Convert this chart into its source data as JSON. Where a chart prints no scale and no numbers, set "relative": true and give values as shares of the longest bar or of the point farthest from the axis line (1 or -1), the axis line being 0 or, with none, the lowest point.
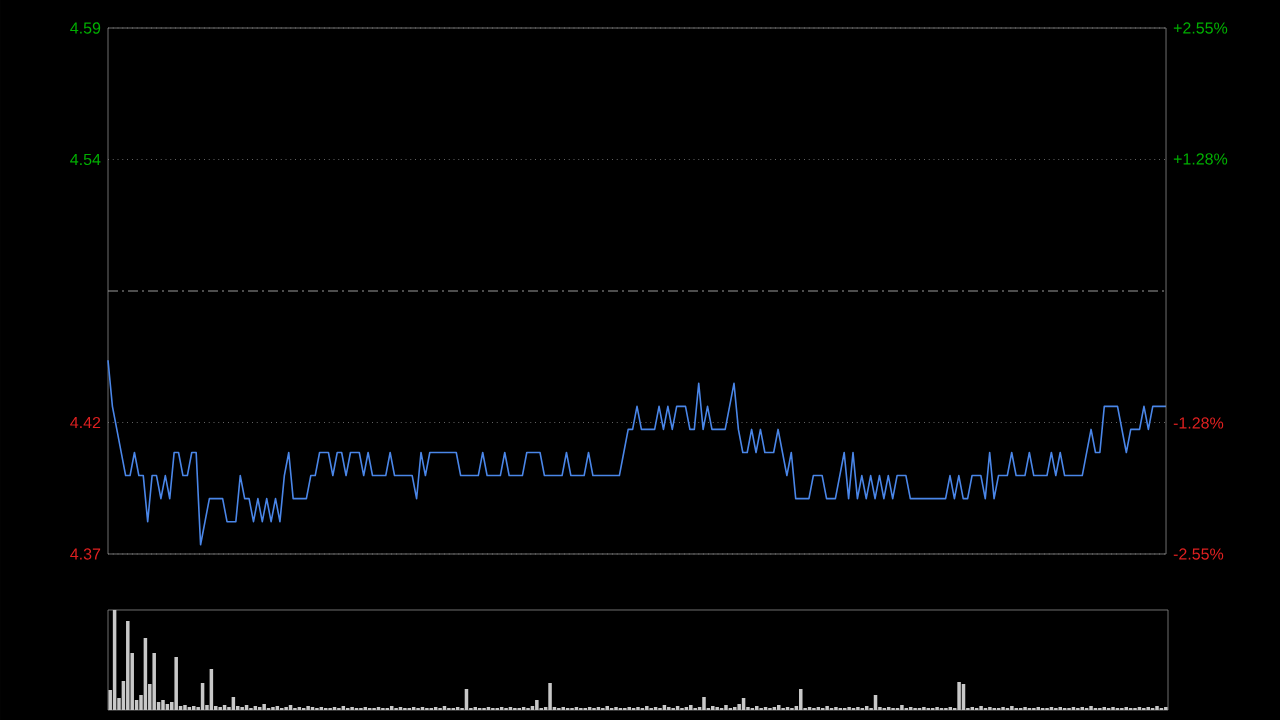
{
  "chart_data": [
    {
      "type": "line",
      "grid": "y",
      "categories": [
        null,
        null,
        null,
        null,
        null,
        null,
        null,
        null,
        null,
        null,
        null,
        null,
        null,
        null,
        null,
        null,
        null,
        null,
        null,
        null,
        null,
        null,
        null,
        null,
        null,
        null,
        null,
        null,
        null,
        null,
        null,
        null,
        null,
        null,
        null,
        null,
        null,
        null,
        null,
        null,
        null,
        null,
        null,
        null,
        null,
        null,
        null,
        null,
        null,
        null,
        null,
        null,
        null,
        null,
        null,
        null,
        null,
        null,
        null,
        null,
        null,
        null,
        null,
        null,
        null,
        null,
        null,
        null,
        null,
        null,
        null,
        null,
        null,
        null,
        null,
        null,
        null,
        null,
        null,
        null,
        null,
        null,
        null,
        null,
        null,
        null,
        null,
        null,
        null,
        null,
        null,
        null,
        null,
        null,
        null,
        null,
        null,
        null,
        null,
        null,
        null,
        null,
        null,
        null,
        null,
        null,
        null,
        null,
        null,
        null,
        null,
        null,
        null,
        null,
        null,
        null,
        null,
        null,
        null,
        null,
        null,
        null,
        null,
        null,
        null,
        null,
        null,
        null,
        null,
        null,
        null,
        null,
        null,
        null,
        null,
        null,
        null,
        null,
        null,
        null,
        null,
        null,
        null,
        null,
        null,
        null,
        null,
        null,
        null,
        null,
        null,
        null,
        null,
        null,
        null,
        null,
        null,
        null,
        null,
        null,
        null,
        null,
        null,
        null,
        null,
        null,
        null,
        null,
        null,
        null,
        null,
        null,
        null,
        null,
        null,
        null,
        null,
        null,
        null,
        null,
        null,
        null,
        null,
        null,
        null,
        null,
        null,
        null,
        null,
        null,
        null,
        null,
        null,
        null,
        null,
        null,
        null,
        null,
        null,
        null,
        null,
        null,
        null,
        null,
        null,
        null,
        null,
        null,
        null,
        null,
        null,
        null,
        null,
        null,
        null,
        null,
        null,
        null,
        null,
        null,
        null,
        null,
        null,
        null,
        null,
        null,
        null,
        null,
        null,
        null,
        null,
        null,
        null,
        null,
        null,
        null,
        null,
        null,
        null,
        null,
        null
      ],
      "ylim": [
        4.366,
        4.594
      ],
      "yticks": [
        {
          "value": 4.366,
          "label": "4.37"
        },
        {
          "value": 4.423,
          "label": "4.42"
        },
        {
          "value": 4.537,
          "label": "4.54"
        },
        {
          "value": 4.594,
          "label": "4.59"
        }
      ],
      "y2lim": [
        -2.55,
        2.55
      ],
      "y2ticks": [
        {
          "value": -2.55,
          "label": "-2.55%"
        },
        {
          "value": -1.28,
          "label": "-1.28%"
        },
        {
          "value": 1.28,
          "label": "+1.28%"
        },
        {
          "value": 2.55,
          "label": "+2.55%"
        }
      ],
      "ref_lines": [
        {
          "axis": "y",
          "value": 4.48,
          "line_style": "dashed",
          "color": "#9a9a9a"
        }
      ],
      "series": [
        {
          "color": "#4a86e8",
          "values": [
            4.45,
            4.43,
            4.42,
            4.41,
            4.4,
            4.4,
            4.41,
            4.4,
            4.4,
            4.38,
            4.4,
            4.4,
            4.39,
            4.4,
            4.39,
            4.41,
            4.41,
            4.4,
            4.4,
            4.41,
            4.41,
            4.37,
            4.38,
            4.39,
            4.39,
            4.39,
            4.39,
            4.38,
            4.38,
            4.38,
            4.4,
            4.39,
            4.39,
            4.38,
            4.39,
            4.38,
            4.39,
            4.38,
            4.39,
            4.38,
            4.4,
            4.41,
            4.39,
            4.39,
            4.39,
            4.39,
            4.4,
            4.4,
            4.41,
            4.41,
            4.41,
            4.4,
            4.41,
            4.41,
            4.4,
            4.41,
            4.41,
            4.41,
            4.4,
            4.41,
            4.4,
            4.4,
            4.4,
            4.4,
            4.41,
            4.4,
            4.4,
            4.4,
            4.4,
            4.4,
            4.39,
            4.41,
            4.4,
            4.41,
            4.41,
            4.41,
            4.41,
            4.41,
            4.41,
            4.41,
            4.4,
            4.4,
            4.4,
            4.4,
            4.4,
            4.41,
            4.4,
            4.4,
            4.4,
            4.4,
            4.41,
            4.4,
            4.4,
            4.4,
            4.4,
            4.41,
            4.41,
            4.41,
            4.41,
            4.4,
            4.4,
            4.4,
            4.4,
            4.4,
            4.41,
            4.4,
            4.4,
            4.4,
            4.4,
            4.41,
            4.4,
            4.4,
            4.4,
            4.4,
            4.4,
            4.4,
            4.4,
            4.41,
            4.42,
            4.42,
            4.43,
            4.42,
            4.42,
            4.42,
            4.42,
            4.43,
            4.42,
            4.43,
            4.42,
            4.43,
            4.43,
            4.43,
            4.42,
            4.42,
            4.44,
            4.42,
            4.43,
            4.42,
            4.42,
            4.42,
            4.42,
            4.43,
            4.44,
            4.42,
            4.41,
            4.41,
            4.42,
            4.41,
            4.42,
            4.41,
            4.41,
            4.41,
            4.42,
            4.41,
            4.4,
            4.41,
            4.39,
            4.39,
            4.39,
            4.39,
            4.4,
            4.4,
            4.4,
            4.39,
            4.39,
            4.39,
            4.4,
            4.41,
            4.39,
            4.41,
            4.39,
            4.4,
            4.39,
            4.4,
            4.39,
            4.4,
            4.39,
            4.4,
            4.39,
            4.4,
            4.4,
            4.4,
            4.39,
            4.39,
            4.39,
            4.39,
            4.39,
            4.39,
            4.39,
            4.39,
            4.39,
            4.4,
            4.39,
            4.4,
            4.39,
            4.39,
            4.4,
            4.4,
            4.4,
            4.39,
            4.41,
            4.39,
            4.4,
            4.4,
            4.4,
            4.41,
            4.4,
            4.4,
            4.4,
            4.41,
            4.4,
            4.4,
            4.4,
            4.4,
            4.41,
            4.4,
            4.41,
            4.4,
            4.4,
            4.4,
            4.4,
            4.4,
            4.41,
            4.42,
            4.41,
            4.41,
            4.43,
            4.43,
            4.43,
            4.43,
            4.42,
            4.41,
            4.42,
            4.42,
            4.42,
            4.43,
            4.42,
            4.43,
            4.43,
            4.43,
            4.43
          ]
        }
      ]
    },
    {
      "type": "bar",
      "relative": true,
      "color": "#c8c8c8",
      "categories": [
        null,
        null,
        null,
        null,
        null,
        null,
        null,
        null,
        null,
        null,
        null,
        null,
        null,
        null,
        null,
        null,
        null,
        null,
        null,
        null,
        null,
        null,
        null,
        null,
        null,
        null,
        null,
        null,
        null,
        null,
        null,
        null,
        null,
        null,
        null,
        null,
        null,
        null,
        null,
        null,
        null,
        null,
        null,
        null,
        null,
        null,
        null,
        null,
        null,
        null,
        null,
        null,
        null,
        null,
        null,
        null,
        null,
        null,
        null,
        null,
        null,
        null,
        null,
        null,
        null,
        null,
        null,
        null,
        null,
        null,
        null,
        null,
        null,
        null,
        null,
        null,
        null,
        null,
        null,
        null,
        null,
        null,
        null,
        null,
        null,
        null,
        null,
        null,
        null,
        null,
        null,
        null,
        null,
        null,
        null,
        null,
        null,
        null,
        null,
        null,
        null,
        null,
        null,
        null,
        null,
        null,
        null,
        null,
        null,
        null,
        null,
        null,
        null,
        null,
        null,
        null,
        null,
        null,
        null,
        null,
        null,
        null,
        null,
        null,
        null,
        null,
        null,
        null,
        null,
        null,
        null,
        null,
        null,
        null,
        null,
        null,
        null,
        null,
        null,
        null,
        null,
        null,
        null,
        null,
        null,
        null,
        null,
        null,
        null,
        null,
        null,
        null,
        null,
        null,
        null,
        null,
        null,
        null,
        null,
        null,
        null,
        null,
        null,
        null,
        null,
        null,
        null,
        null,
        null,
        null,
        null,
        null,
        null,
        null,
        null,
        null,
        null,
        null,
        null,
        null,
        null,
        null,
        null,
        null,
        null,
        null,
        null,
        null,
        null,
        null,
        null,
        null,
        null,
        null,
        null,
        null,
        null,
        null,
        null,
        null,
        null,
        null,
        null,
        null,
        null,
        null,
        null,
        null,
        null,
        null,
        null,
        null,
        null,
        null,
        null,
        null,
        null,
        null,
        null,
        null,
        null,
        null,
        null,
        null,
        null,
        null,
        null,
        null,
        null,
        null,
        null,
        null,
        null,
        null,
        null,
        null,
        null,
        null,
        null,
        null,
        null
      ],
      "values": [
        0.2,
        1.0,
        0.12,
        0.29,
        0.89,
        0.57,
        0.1,
        0.15,
        0.72,
        0.26,
        0.57,
        0.08,
        0.1,
        0.06,
        0.08,
        0.53,
        0.04,
        0.05,
        0.03,
        0.04,
        0.03,
        0.27,
        0.05,
        0.41,
        0.04,
        0.03,
        0.05,
        0.03,
        0.13,
        0.04,
        0.03,
        0.05,
        0.02,
        0.04,
        0.03,
        0.06,
        0.02,
        0.03,
        0.04,
        0.02,
        0.03,
        0.05,
        0.02,
        0.03,
        0.02,
        0.04,
        0.03,
        0.02,
        0.03,
        0.02,
        0.02,
        0.03,
        0.02,
        0.04,
        0.02,
        0.03,
        0.02,
        0.02,
        0.03,
        0.02,
        0.02,
        0.03,
        0.02,
        0.02,
        0.04,
        0.02,
        0.03,
        0.02,
        0.02,
        0.03,
        0.02,
        0.03,
        0.02,
        0.02,
        0.03,
        0.02,
        0.04,
        0.02,
        0.02,
        0.03,
        0.02,
        0.21,
        0.02,
        0.03,
        0.02,
        0.02,
        0.03,
        0.02,
        0.02,
        0.03,
        0.02,
        0.03,
        0.02,
        0.02,
        0.03,
        0.02,
        0.04,
        0.1,
        0.02,
        0.03,
        0.27,
        0.03,
        0.02,
        0.03,
        0.02,
        0.02,
        0.03,
        0.02,
        0.02,
        0.03,
        0.02,
        0.03,
        0.02,
        0.04,
        0.02,
        0.03,
        0.02,
        0.02,
        0.03,
        0.02,
        0.03,
        0.02,
        0.04,
        0.02,
        0.03,
        0.02,
        0.05,
        0.03,
        0.02,
        0.04,
        0.02,
        0.03,
        0.05,
        0.02,
        0.03,
        0.13,
        0.02,
        0.04,
        0.03,
        0.02,
        0.05,
        0.02,
        0.03,
        0.06,
        0.12,
        0.03,
        0.02,
        0.04,
        0.02,
        0.03,
        0.02,
        0.03,
        0.05,
        0.02,
        0.03,
        0.02,
        0.04,
        0.21,
        0.02,
        0.03,
        0.02,
        0.03,
        0.02,
        0.04,
        0.02,
        0.03,
        0.02,
        0.02,
        0.03,
        0.02,
        0.03,
        0.02,
        0.04,
        0.02,
        0.15,
        0.03,
        0.02,
        0.03,
        0.02,
        0.02,
        0.05,
        0.02,
        0.03,
        0.02,
        0.02,
        0.03,
        0.02,
        0.02,
        0.03,
        0.02,
        0.02,
        0.03,
        0.02,
        0.28,
        0.26,
        0.02,
        0.03,
        0.02,
        0.04,
        0.02,
        0.03,
        0.02,
        0.02,
        0.03,
        0.02,
        0.04,
        0.02,
        0.02,
        0.03,
        0.02,
        0.02,
        0.03,
        0.02,
        0.02,
        0.03,
        0.02,
        0.03,
        0.02,
        0.02,
        0.03,
        0.02,
        0.03,
        0.02,
        0.04,
        0.02,
        0.02,
        0.03,
        0.02,
        0.03,
        0.02,
        0.02,
        0.03,
        0.02,
        0.02,
        0.03,
        0.02,
        0.03,
        0.02,
        0.04,
        0.02,
        0.03
      ]
    }
  ]
}
